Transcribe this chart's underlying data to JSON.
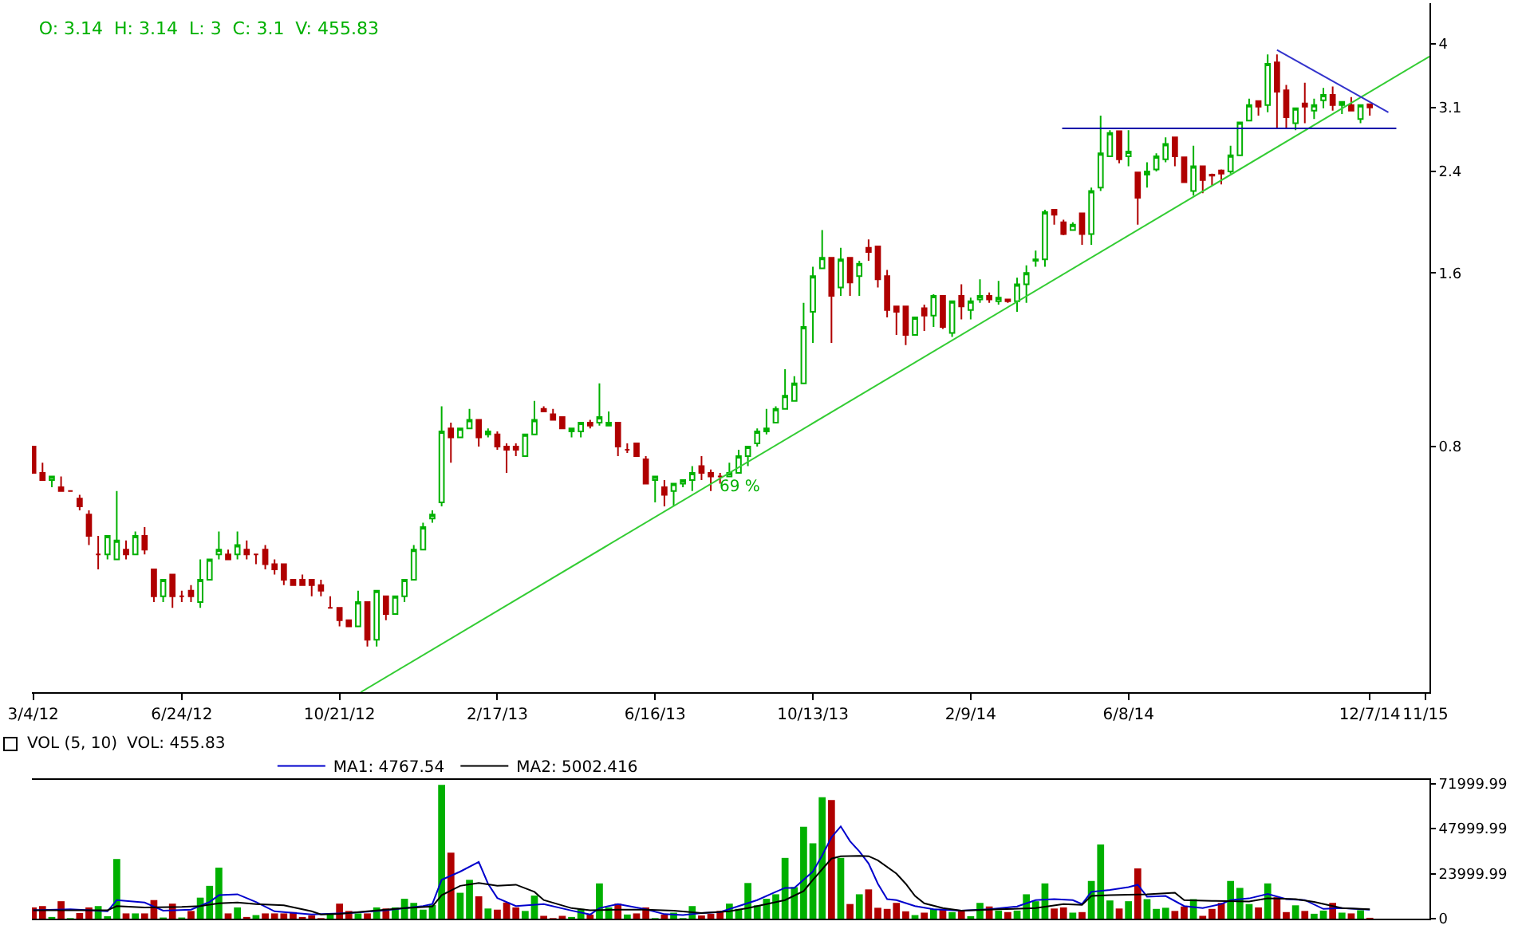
{
  "chart_data": [
    {
      "type": "candlestick",
      "title": "O: 3.14  H: 3.14  L: 3  C: 3.1  V: 455.83",
      "log": true,
      "xlim": [
        "2012-03-03",
        "2015-01-21"
      ],
      "ylim": [
        0.3,
        4.7
      ],
      "xticks": [
        {
          "value": "2012-03-04",
          "label": "3/4/12"
        },
        {
          "value": "2012-06-24",
          "label": "6/24/12"
        },
        {
          "value": "2012-10-21",
          "label": "10/21/12"
        },
        {
          "value": "2013-02-17",
          "label": "2/17/13"
        },
        {
          "value": "2013-06-16",
          "label": "6/16/13"
        },
        {
          "value": "2013-10-13",
          "label": "10/13/13"
        },
        {
          "value": "2014-02-09",
          "label": "2/9/14"
        },
        {
          "value": "2014-06-08",
          "label": "6/8/14"
        },
        {
          "value": "2014-12-07",
          "label": "12/7/14"
        },
        {
          "value": "2015-01-18",
          "label": "11/15"
        }
      ],
      "yticks": [
        0.8,
        1.6,
        2.4,
        3.1,
        4
      ],
      "x": [
        "2012-03-04",
        "2012-03-11",
        "2012-03-18",
        "2012-03-25",
        "2012-04-01",
        "2012-04-08",
        "2012-04-15",
        "2012-04-22",
        "2012-04-29",
        "2012-05-06",
        "2012-05-13",
        "2012-05-20",
        "2012-05-27",
        "2012-06-03",
        "2012-06-10",
        "2012-06-17",
        "2012-06-24",
        "2012-07-01",
        "2012-07-08",
        "2012-07-15",
        "2012-07-22",
        "2012-07-29",
        "2012-08-05",
        "2012-08-12",
        "2012-08-19",
        "2012-08-26",
        "2012-09-02",
        "2012-09-09",
        "2012-09-16",
        "2012-09-23",
        "2012-09-30",
        "2012-10-07",
        "2012-10-14",
        "2012-10-21",
        "2012-10-28",
        "2012-11-04",
        "2012-11-11",
        "2012-11-18",
        "2012-11-25",
        "2012-12-02",
        "2012-12-09",
        "2012-12-16",
        "2012-12-23",
        "2012-12-30",
        "2013-01-06",
        "2013-01-13",
        "2013-01-20",
        "2013-01-27",
        "2013-02-03",
        "2013-02-10",
        "2013-02-17",
        "2013-02-24",
        "2013-03-03",
        "2013-03-10",
        "2013-03-17",
        "2013-03-24",
        "2013-03-31",
        "2013-04-07",
        "2013-04-14",
        "2013-04-21",
        "2013-04-28",
        "2013-05-05",
        "2013-05-12",
        "2013-05-19",
        "2013-05-26",
        "2013-06-02",
        "2013-06-09",
        "2013-06-16",
        "2013-06-23",
        "2013-06-30",
        "2013-07-07",
        "2013-07-14",
        "2013-07-21",
        "2013-07-28",
        "2013-08-04",
        "2013-08-11",
        "2013-08-18",
        "2013-08-25",
        "2013-09-01",
        "2013-09-08",
        "2013-09-15",
        "2013-09-22",
        "2013-09-29",
        "2013-10-06",
        "2013-10-13",
        "2013-10-20",
        "2013-10-27",
        "2013-11-03",
        "2013-11-10",
        "2013-11-17",
        "2013-11-24",
        "2013-12-01",
        "2013-12-08",
        "2013-12-15",
        "2013-12-22",
        "2013-12-29",
        "2014-01-05",
        "2014-01-12",
        "2014-01-19",
        "2014-01-26",
        "2014-02-02",
        "2014-02-09",
        "2014-02-16",
        "2014-02-23",
        "2014-03-02",
        "2014-03-09",
        "2014-03-16",
        "2014-03-23",
        "2014-03-30",
        "2014-04-06",
        "2014-04-13",
        "2014-04-20",
        "2014-04-27",
        "2014-05-04",
        "2014-05-11",
        "2014-05-18",
        "2014-05-25",
        "2014-06-01",
        "2014-06-08",
        "2014-06-15",
        "2014-06-22",
        "2014-06-29",
        "2014-07-06",
        "2014-07-13",
        "2014-07-20",
        "2014-07-27",
        "2014-08-03",
        "2014-08-10",
        "2014-08-17",
        "2014-08-24",
        "2014-08-31",
        "2014-09-07",
        "2014-09-14",
        "2014-09-21",
        "2014-09-28",
        "2014-10-05",
        "2014-10-12",
        "2014-10-19",
        "2014-10-26",
        "2014-11-02",
        "2014-11-09",
        "2014-11-16",
        "2014-11-23",
        "2014-11-30",
        "2014-12-07"
      ],
      "ohlc": [
        [
          0.8,
          0.8,
          0.72,
          0.72
        ],
        [
          0.72,
          0.75,
          0.7,
          0.7
        ],
        [
          0.7,
          0.71,
          0.68,
          0.71
        ],
        [
          0.68,
          0.71,
          0.67,
          0.67
        ],
        [
          0.67,
          0.67,
          0.67,
          0.67
        ],
        [
          0.65,
          0.66,
          0.62,
          0.63
        ],
        [
          0.61,
          0.62,
          0.54,
          0.56
        ],
        [
          0.52,
          0.56,
          0.49,
          0.52
        ],
        [
          0.52,
          0.56,
          0.51,
          0.56
        ],
        [
          0.51,
          0.67,
          0.51,
          0.55
        ],
        [
          0.53,
          0.55,
          0.51,
          0.52
        ],
        [
          0.52,
          0.57,
          0.52,
          0.56
        ],
        [
          0.56,
          0.58,
          0.52,
          0.53
        ],
        [
          0.49,
          0.49,
          0.43,
          0.44
        ],
        [
          0.44,
          0.47,
          0.43,
          0.47
        ],
        [
          0.48,
          0.48,
          0.42,
          0.44
        ],
        [
          0.44,
          0.45,
          0.43,
          0.44
        ],
        [
          0.45,
          0.46,
          0.43,
          0.44
        ],
        [
          0.43,
          0.51,
          0.42,
          0.47
        ],
        [
          0.47,
          0.51,
          0.47,
          0.51
        ],
        [
          0.52,
          0.57,
          0.51,
          0.53
        ],
        [
          0.52,
          0.53,
          0.51,
          0.51
        ],
        [
          0.52,
          0.57,
          0.51,
          0.54
        ],
        [
          0.53,
          0.55,
          0.51,
          0.52
        ],
        [
          0.52,
          0.52,
          0.5,
          0.52
        ],
        [
          0.53,
          0.54,
          0.49,
          0.5
        ],
        [
          0.5,
          0.51,
          0.48,
          0.49
        ],
        [
          0.5,
          0.5,
          0.46,
          0.47
        ],
        [
          0.47,
          0.47,
          0.46,
          0.46
        ],
        [
          0.47,
          0.48,
          0.46,
          0.46
        ],
        [
          0.47,
          0.47,
          0.44,
          0.46
        ],
        [
          0.46,
          0.47,
          0.44,
          0.45
        ],
        [
          0.42,
          0.44,
          0.42,
          0.42
        ],
        [
          0.42,
          0.42,
          0.39,
          0.4
        ],
        [
          0.4,
          0.4,
          0.39,
          0.39
        ],
        [
          0.39,
          0.45,
          0.39,
          0.43
        ],
        [
          0.43,
          0.43,
          0.36,
          0.37
        ],
        [
          0.37,
          0.45,
          0.36,
          0.45
        ],
        [
          0.44,
          0.44,
          0.4,
          0.41
        ],
        [
          0.41,
          0.44,
          0.41,
          0.44
        ],
        [
          0.44,
          0.47,
          0.43,
          0.47
        ],
        [
          0.47,
          0.54,
          0.47,
          0.53
        ],
        [
          0.53,
          0.59,
          0.53,
          0.58
        ],
        [
          0.6,
          0.62,
          0.59,
          0.61
        ],
        [
          0.64,
          0.94,
          0.63,
          0.85
        ],
        [
          0.86,
          0.88,
          0.75,
          0.83
        ],
        [
          0.83,
          0.86,
          0.83,
          0.86
        ],
        [
          0.86,
          0.93,
          0.86,
          0.89
        ],
        [
          0.89,
          0.89,
          0.8,
          0.83
        ],
        [
          0.84,
          0.86,
          0.83,
          0.85
        ],
        [
          0.84,
          0.85,
          0.79,
          0.8
        ],
        [
          0.8,
          0.81,
          0.72,
          0.79
        ],
        [
          0.8,
          0.81,
          0.77,
          0.79
        ],
        [
          0.77,
          0.84,
          0.77,
          0.84
        ],
        [
          0.84,
          0.96,
          0.84,
          0.89
        ],
        [
          0.93,
          0.94,
          0.92,
          0.92
        ],
        [
          0.91,
          0.93,
          0.89,
          0.89
        ],
        [
          0.9,
          0.9,
          0.86,
          0.86
        ],
        [
          0.85,
          0.86,
          0.83,
          0.86
        ],
        [
          0.85,
          0.88,
          0.83,
          0.88
        ],
        [
          0.88,
          0.89,
          0.86,
          0.87
        ],
        [
          0.88,
          1.03,
          0.87,
          0.9
        ],
        [
          0.87,
          0.92,
          0.87,
          0.88
        ],
        [
          0.88,
          0.88,
          0.77,
          0.8
        ],
        [
          0.79,
          0.81,
          0.78,
          0.79
        ],
        [
          0.81,
          0.81,
          0.77,
          0.77
        ],
        [
          0.76,
          0.77,
          0.69,
          0.69
        ],
        [
          0.7,
          0.71,
          0.64,
          0.71
        ],
        [
          0.68,
          0.7,
          0.63,
          0.66
        ],
        [
          0.67,
          0.69,
          0.63,
          0.69
        ],
        [
          0.69,
          0.7,
          0.68,
          0.7
        ],
        [
          0.7,
          0.74,
          0.67,
          0.72
        ],
        [
          0.74,
          0.77,
          0.7,
          0.72
        ],
        [
          0.72,
          0.73,
          0.67,
          0.71
        ],
        [
          0.71,
          0.72,
          0.69,
          0.71
        ],
        [
          0.71,
          0.75,
          0.71,
          0.72
        ],
        [
          0.72,
          0.79,
          0.72,
          0.77
        ],
        [
          0.77,
          0.8,
          0.74,
          0.8
        ],
        [
          0.81,
          0.86,
          0.8,
          0.85
        ],
        [
          0.85,
          0.93,
          0.84,
          0.86
        ],
        [
          0.88,
          0.94,
          0.88,
          0.93
        ],
        [
          0.93,
          1.09,
          0.93,
          0.98
        ],
        [
          0.96,
          1.06,
          0.96,
          1.03
        ],
        [
          1.03,
          1.42,
          1.03,
          1.29
        ],
        [
          1.37,
          1.64,
          1.21,
          1.58
        ],
        [
          1.63,
          1.9,
          1.63,
          1.7
        ],
        [
          1.7,
          1.7,
          1.21,
          1.46
        ],
        [
          1.51,
          1.77,
          1.46,
          1.69
        ],
        [
          1.7,
          1.7,
          1.46,
          1.54
        ],
        [
          1.58,
          1.68,
          1.46,
          1.66
        ],
        [
          1.77,
          1.83,
          1.68,
          1.74
        ],
        [
          1.78,
          1.78,
          1.51,
          1.56
        ],
        [
          1.58,
          1.62,
          1.34,
          1.38
        ],
        [
          1.4,
          1.4,
          1.25,
          1.37
        ],
        [
          1.4,
          1.4,
          1.2,
          1.25
        ],
        [
          1.25,
          1.34,
          1.25,
          1.34
        ],
        [
          1.39,
          1.41,
          1.27,
          1.35
        ],
        [
          1.35,
          1.47,
          1.29,
          1.46
        ],
        [
          1.46,
          1.46,
          1.28,
          1.29
        ],
        [
          1.26,
          1.43,
          1.24,
          1.43
        ],
        [
          1.46,
          1.53,
          1.33,
          1.4
        ],
        [
          1.38,
          1.45,
          1.33,
          1.43
        ],
        [
          1.44,
          1.56,
          1.42,
          1.46
        ],
        [
          1.46,
          1.48,
          1.42,
          1.44
        ],
        [
          1.43,
          1.55,
          1.41,
          1.45
        ],
        [
          1.44,
          1.44,
          1.42,
          1.43
        ],
        [
          1.43,
          1.57,
          1.37,
          1.53
        ],
        [
          1.53,
          1.65,
          1.42,
          1.6
        ],
        [
          1.68,
          1.75,
          1.64,
          1.69
        ],
        [
          1.69,
          2.06,
          1.64,
          2.04
        ],
        [
          2.06,
          2.06,
          1.94,
          2.02
        ],
        [
          1.96,
          1.98,
          1.86,
          1.87
        ],
        [
          1.9,
          1.96,
          1.9,
          1.94
        ],
        [
          2.03,
          2.03,
          1.79,
          1.87
        ],
        [
          1.87,
          2.25,
          1.79,
          2.22
        ],
        [
          2.25,
          3,
          2.22,
          2.58
        ],
        [
          2.55,
          2.83,
          2.55,
          2.8
        ],
        [
          2.82,
          2.82,
          2.48,
          2.52
        ],
        [
          2.55,
          2.83,
          2.45,
          2.6
        ],
        [
          2.39,
          2.39,
          1.94,
          2.16
        ],
        [
          2.37,
          2.49,
          2.25,
          2.4
        ],
        [
          2.42,
          2.58,
          2.4,
          2.55
        ],
        [
          2.52,
          2.75,
          2.49,
          2.68
        ],
        [
          2.75,
          2.75,
          2.45,
          2.55
        ],
        [
          2.54,
          2.54,
          2.3,
          2.3
        ],
        [
          2.22,
          2.66,
          2.18,
          2.45
        ],
        [
          2.45,
          2.45,
          2.2,
          2.32
        ],
        [
          2.37,
          2.38,
          2.27,
          2.36
        ],
        [
          2.41,
          2.42,
          2.28,
          2.38
        ],
        [
          2.4,
          2.66,
          2.38,
          2.56
        ],
        [
          2.56,
          2.92,
          2.56,
          2.92
        ],
        [
          2.94,
          3.21,
          2.94,
          3.13
        ],
        [
          3.18,
          3.18,
          3,
          3.11
        ],
        [
          3.13,
          3.83,
          3.04,
          3.69
        ],
        [
          3.71,
          3.83,
          2.85,
          3.3
        ],
        [
          3.32,
          3.39,
          2.85,
          2.98
        ],
        [
          2.91,
          3.09,
          2.83,
          3.09
        ],
        [
          3.15,
          3.42,
          2.91,
          3.11
        ],
        [
          3.06,
          3.21,
          2.96,
          3.13
        ],
        [
          3.19,
          3.35,
          3.09,
          3.26
        ],
        [
          3.26,
          3.37,
          3.06,
          3.13
        ],
        [
          3.13,
          3.17,
          3.02,
          3.17
        ],
        [
          3.13,
          3.23,
          3.06,
          3.06
        ],
        [
          2.96,
          3.13,
          2.91,
          3.13
        ],
        [
          3.14,
          3.14,
          3,
          3.1
        ]
      ],
      "series": [
        {
          "type": "line",
          "color": "#33cc33",
          "x": [
            "2012-11-06",
            "2015-01-21"
          ],
          "values": [
            0.3,
            3.8
          ]
        },
        {
          "type": "line",
          "color": "#0000aa",
          "x": [
            "2014-04-19",
            "2014-12-27"
          ],
          "values": [
            2.85,
            2.85
          ]
        },
        {
          "type": "line",
          "color": "#3333cc",
          "x": [
            "2014-09-28",
            "2014-12-21"
          ],
          "values": [
            3.9,
            3.04
          ]
        }
      ],
      "annotations": [
        "69 %"
      ]
    },
    {
      "type": "bar",
      "title": "VOL (5, 10)",
      "annotations": [
        "VOL: 455.83"
      ],
      "legend": "top left",
      "tick_labels": "y",
      "xlim": [
        "2012-03-03",
        "2015-01-21"
      ],
      "ylim": [
        0,
        74000
      ],
      "yticks": [
        0,
        23999.99,
        47999.99,
        71999.99
      ],
      "x": [
        "2012-03-04",
        "2012-03-11",
        "2012-03-18",
        "2012-03-25",
        "2012-04-01",
        "2012-04-08",
        "2012-04-15",
        "2012-04-22",
        "2012-04-29",
        "2012-05-06",
        "2012-05-13",
        "2012-05-20",
        "2012-05-27",
        "2012-06-03",
        "2012-06-10",
        "2012-06-17",
        "2012-06-24",
        "2012-07-01",
        "2012-07-08",
        "2012-07-15",
        "2012-07-22",
        "2012-07-29",
        "2012-08-05",
        "2012-08-12",
        "2012-08-19",
        "2012-08-26",
        "2012-09-02",
        "2012-09-09",
        "2012-09-16",
        "2012-09-23",
        "2012-09-30",
        "2012-10-07",
        "2012-10-14",
        "2012-10-21",
        "2012-10-28",
        "2012-11-04",
        "2012-11-11",
        "2012-11-18",
        "2012-11-25",
        "2012-12-02",
        "2012-12-09",
        "2012-12-16",
        "2012-12-23",
        "2012-12-30",
        "2013-01-06",
        "2013-01-13",
        "2013-01-20",
        "2013-01-27",
        "2013-02-03",
        "2013-02-10",
        "2013-02-17",
        "2013-02-24",
        "2013-03-03",
        "2013-03-10",
        "2013-03-17",
        "2013-03-24",
        "2013-03-31",
        "2013-04-07",
        "2013-04-14",
        "2013-04-21",
        "2013-04-28",
        "2013-05-05",
        "2013-05-12",
        "2013-05-19",
        "2013-05-26",
        "2013-06-02",
        "2013-06-09",
        "2013-06-16",
        "2013-06-23",
        "2013-06-30",
        "2013-07-07",
        "2013-07-14",
        "2013-07-21",
        "2013-07-28",
        "2013-08-04",
        "2013-08-11",
        "2013-08-18",
        "2013-08-25",
        "2013-09-01",
        "2013-09-08",
        "2013-09-15",
        "2013-09-22",
        "2013-09-29",
        "2013-10-06",
        "2013-10-13",
        "2013-10-20",
        "2013-10-27",
        "2013-11-03",
        "2013-11-10",
        "2013-11-17",
        "2013-11-24",
        "2013-12-01",
        "2013-12-08",
        "2013-12-15",
        "2013-12-22",
        "2013-12-29",
        "2014-01-05",
        "2014-01-12",
        "2014-01-19",
        "2014-01-26",
        "2014-02-02",
        "2014-02-09",
        "2014-02-16",
        "2014-02-23",
        "2014-03-02",
        "2014-03-09",
        "2014-03-16",
        "2014-03-23",
        "2014-03-30",
        "2014-04-06",
        "2014-04-13",
        "2014-04-20",
        "2014-04-27",
        "2014-05-04",
        "2014-05-11",
        "2014-05-18",
        "2014-05-25",
        "2014-06-01",
        "2014-06-08",
        "2014-06-15",
        "2014-06-22",
        "2014-06-29",
        "2014-07-06",
        "2014-07-13",
        "2014-07-20",
        "2014-07-27",
        "2014-08-03",
        "2014-08-10",
        "2014-08-17",
        "2014-08-24",
        "2014-08-31",
        "2014-09-07",
        "2014-09-14",
        "2014-09-21",
        "2014-09-28",
        "2014-10-05",
        "2014-10-12",
        "2014-10-19",
        "2014-10-26",
        "2014-11-02",
        "2014-11-09",
        "2014-11-16",
        "2014-11-23",
        "2014-11-30",
        "2014-12-07"
      ],
      "series": [
        {
          "values": [
            6000,
            6700,
            900,
            9300,
            300,
            3000,
            6000,
            6700,
            1300,
            31800,
            2800,
            2800,
            2800,
            9900,
            600,
            8000,
            600,
            4100,
            11200,
            17500,
            27200,
            2800,
            6000,
            900,
            1900,
            2800,
            2800,
            2800,
            3500,
            900,
            1700,
            300,
            2200,
            8000,
            4100,
            2800,
            2800,
            6000,
            5400,
            6000,
            10600,
            8400,
            4800,
            7300,
            71300,
            35200,
            13800,
            20700,
            11900,
            5400,
            4800,
            8600,
            6000,
            4100,
            12300,
            1500,
            300,
            1500,
            900,
            5200,
            2200,
            18800,
            6000,
            8000,
            2200,
            2800,
            6000,
            300,
            2200,
            3200,
            300,
            6700,
            1700,
            2600,
            4100,
            8000,
            5200,
            19000,
            7100,
            10600,
            13000,
            32400,
            16800,
            49000,
            40200,
            64800,
            63300,
            32400,
            7800,
            13000,
            15600,
            5800,
            5200,
            8400,
            3900,
            1900,
            3200,
            5200,
            5200,
            3500,
            4300,
            1300,
            8400,
            6500,
            4300,
            3500,
            4300,
            13000,
            9300,
            18800,
            5400,
            6000,
            3200,
            3500,
            20100,
            39500,
            9700,
            5400,
            9300,
            26800,
            10400,
            5200,
            5800,
            4100,
            6500,
            10400,
            1500,
            5200,
            8400,
            20100,
            16400,
            7800,
            6000,
            18800,
            11400,
            3500,
            7100,
            4100,
            2600,
            4300,
            8400,
            3200,
            2800,
            4500,
            455.83
          ],
          "colors": [
            "#b00000",
            "#b00000",
            "#00b000",
            "#b00000",
            "#00b000",
            "#b00000",
            "#b00000",
            "#00b000",
            "#00b000",
            "#00b000",
            "#b00000",
            "#00b000",
            "#b00000",
            "#b00000",
            "#00b000",
            "#b00000",
            "#00b000",
            "#b00000",
            "#00b000",
            "#00b000",
            "#00b000",
            "#b00000",
            "#00b000",
            "#b00000",
            "#00b000",
            "#b00000",
            "#b00000",
            "#b00000",
            "#b00000",
            "#b00000",
            "#b00000",
            "#b00000",
            "#00b000",
            "#b00000",
            "#b00000",
            "#00b000",
            "#b00000",
            "#00b000",
            "#b00000",
            "#00b000",
            "#00b000",
            "#00b000",
            "#00b000",
            "#00b000",
            "#00b000",
            "#b00000",
            "#00b000",
            "#00b000",
            "#b00000",
            "#00b000",
            "#b00000",
            "#b00000",
            "#b00000",
            "#00b000",
            "#00b000",
            "#b00000",
            "#b00000",
            "#b00000",
            "#00b000",
            "#00b000",
            "#b00000",
            "#00b000",
            "#00b000",
            "#b00000",
            "#00b000",
            "#b00000",
            "#b00000",
            "#00b000",
            "#b00000",
            "#00b000",
            "#00b000",
            "#00b000",
            "#b00000",
            "#b00000",
            "#b00000",
            "#00b000",
            "#00b000",
            "#00b000",
            "#00b000",
            "#00b000",
            "#00b000",
            "#00b000",
            "#00b000",
            "#00b000",
            "#00b000",
            "#00b000",
            "#b00000",
            "#00b000",
            "#b00000",
            "#00b000",
            "#b00000",
            "#b00000",
            "#b00000",
            "#b00000",
            "#b00000",
            "#00b000",
            "#b00000",
            "#00b000",
            "#b00000",
            "#00b000",
            "#b00000",
            "#00b000",
            "#00b000",
            "#b00000",
            "#00b000",
            "#b00000",
            "#00b000",
            "#00b000",
            "#00b000",
            "#00b000",
            "#b00000",
            "#b00000",
            "#00b000",
            "#b00000",
            "#00b000",
            "#00b000",
            "#00b000",
            "#b00000",
            "#00b000",
            "#b00000",
            "#00b000",
            "#00b000",
            "#00b000",
            "#b00000",
            "#b00000",
            "#00b000",
            "#b00000",
            "#b00000",
            "#b00000",
            "#00b000",
            "#00b000",
            "#00b000",
            "#b00000",
            "#00b000",
            "#b00000",
            "#b00000",
            "#00b000",
            "#b00000",
            "#00b000",
            "#00b000",
            "#b00000",
            "#00b000",
            "#b00000",
            "#00b000",
            "#b00000"
          ]
        },
        {
          "type": "line",
          "name": "MA1: 4767.54",
          "color": "#0000cc",
          "x": [
            "2012-03-04",
            "2012-04-01",
            "2012-04-29",
            "2012-05-06",
            "2012-05-27",
            "2012-06-10",
            "2012-07-01",
            "2012-07-15",
            "2012-07-22",
            "2012-08-05",
            "2012-08-19",
            "2012-09-02",
            "2012-09-30",
            "2012-10-28",
            "2012-11-25",
            "2012-12-23",
            "2012-12-30",
            "2013-01-06",
            "2013-01-20",
            "2013-02-03",
            "2013-02-10",
            "2013-02-17",
            "2013-03-03",
            "2013-03-24",
            "2013-04-14",
            "2013-04-28",
            "2013-05-05",
            "2013-05-19",
            "2013-06-09",
            "2013-06-23",
            "2013-07-07",
            "2013-07-21",
            "2013-08-04",
            "2013-08-18",
            "2013-09-01",
            "2013-09-15",
            "2013-09-22",
            "2013-09-29",
            "2013-10-13",
            "2013-10-20",
            "2013-10-27",
            "2013-11-03",
            "2013-11-10",
            "2013-11-17",
            "2013-11-24",
            "2013-12-01",
            "2013-12-08",
            "2013-12-15",
            "2013-12-29",
            "2014-01-12",
            "2014-02-02",
            "2014-02-23",
            "2014-03-16",
            "2014-03-30",
            "2014-04-13",
            "2014-04-27",
            "2014-05-04",
            "2014-05-11",
            "2014-05-25",
            "2014-06-08",
            "2014-06-15",
            "2014-06-22",
            "2014-07-06",
            "2014-07-20",
            "2014-08-03",
            "2014-08-17",
            "2014-08-24",
            "2014-09-07",
            "2014-09-21",
            "2014-10-05",
            "2014-10-19",
            "2014-11-02",
            "2014-11-16",
            "2014-12-07"
          ],
          "values": [
            4500,
            5000,
            3900,
            9900,
            8600,
            4300,
            4800,
            8900,
            12500,
            13000,
            8900,
            3900,
            2200,
            3000,
            4500,
            6700,
            7800,
            20700,
            25100,
            30200,
            18600,
            11000,
            6700,
            7800,
            4300,
            2200,
            5600,
            7800,
            5000,
            2400,
            1900,
            3000,
            3500,
            6700,
            9900,
            14300,
            16400,
            16400,
            25100,
            33700,
            43400,
            49200,
            41300,
            35900,
            29400,
            18600,
            10400,
            9900,
            6700,
            5000,
            4300,
            5000,
            6500,
            9900,
            10400,
            9900,
            7800,
            14300,
            15300,
            16800,
            18100,
            11700,
            12100,
            6700,
            5600,
            7800,
            9900,
            10800,
            13200,
            10400,
            9900,
            5200,
            5600,
            4767.54
          ]
        },
        {
          "type": "line",
          "name": "MA2: 5002.416",
          "color": "#000000",
          "x": [
            "2012-03-04",
            "2012-04-08",
            "2012-04-29",
            "2012-05-06",
            "2012-05-27",
            "2012-06-24",
            "2012-07-08",
            "2012-07-22",
            "2012-08-05",
            "2012-08-19",
            "2012-09-09",
            "2012-09-30",
            "2012-10-07",
            "2012-10-21",
            "2012-11-11",
            "2012-12-09",
            "2012-12-30",
            "2013-01-06",
            "2013-01-20",
            "2013-02-03",
            "2013-02-17",
            "2013-03-03",
            "2013-03-17",
            "2013-03-24",
            "2013-04-14",
            "2013-04-28",
            "2013-05-19",
            "2013-06-09",
            "2013-06-30",
            "2013-07-21",
            "2013-08-11",
            "2013-08-25",
            "2013-09-08",
            "2013-09-22",
            "2013-10-06",
            "2013-10-13",
            "2013-10-27",
            "2013-11-03",
            "2013-11-17",
            "2013-11-24",
            "2013-12-01",
            "2013-12-15",
            "2013-12-22",
            "2013-12-29",
            "2014-01-05",
            "2014-01-19",
            "2014-02-02",
            "2014-03-02",
            "2014-03-30",
            "2014-04-20",
            "2014-05-04",
            "2014-05-11",
            "2014-05-25",
            "2014-06-22",
            "2014-07-13",
            "2014-07-20",
            "2014-08-10",
            "2014-09-07",
            "2014-09-21",
            "2014-10-12",
            "2014-10-26",
            "2014-11-16",
            "2014-12-07"
          ],
          "values": [
            4500,
            4500,
            4500,
            6700,
            6000,
            6300,
            6700,
            8200,
            8600,
            7800,
            7100,
            3900,
            2200,
            2600,
            3900,
            5600,
            6500,
            12500,
            17500,
            19000,
            17500,
            18100,
            14300,
            9900,
            5600,
            4500,
            4800,
            4800,
            4300,
            3000,
            3900,
            5600,
            7800,
            9900,
            14700,
            20700,
            32000,
            33300,
            33500,
            33300,
            31100,
            24000,
            18600,
            12100,
            8200,
            5600,
            4300,
            5000,
            5600,
            7800,
            7300,
            12100,
            12500,
            13000,
            13800,
            9900,
            9500,
            9100,
            10800,
            10400,
            8900,
            5600,
            5002.416
          ]
        }
      ]
    }
  ]
}
